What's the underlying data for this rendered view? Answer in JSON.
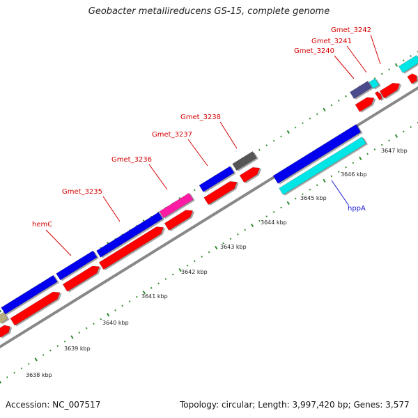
{
  "title": "Geobacter metallireducens GS-15, complete genome",
  "footer": {
    "accession": "Accession: NC_007517",
    "summary": "Topology: circular; Length: 3,997,420 bp; Genes: 3,577"
  },
  "colors": {
    "background": "#ffffff",
    "backbone": "#888888",
    "rna_track": "#ff0000",
    "tick_dots": "#2e8b2e",
    "label_red": "#d40000",
    "label_blue": "#1515d4",
    "cds_blue": "#0000ee",
    "cds_cyan": "#00e5e5",
    "cds_magenta": "#ff1aa6",
    "cds_gray": "#555555",
    "cds_navy": "#4b4a8c",
    "cds_olive": "#b8b07a"
  },
  "kbp_ticks": [
    "3638 kbp",
    "3639 kbp",
    "3640 kbp",
    "3641 kbp",
    "3642 kbp",
    "3643 kbp",
    "3644 kbp",
    "3645 kbp",
    "3646 kbp",
    "3647 kbp"
  ],
  "gene_labels": [
    {
      "name": "hemC",
      "color": "label_red"
    },
    {
      "name": "Gmet_3235",
      "color": "label_red"
    },
    {
      "name": "Gmet_3236",
      "color": "label_red"
    },
    {
      "name": "Gmet_3237",
      "color": "label_red"
    },
    {
      "name": "Gmet_3238",
      "color": "label_red"
    },
    {
      "name": "Gmet_3240",
      "color": "label_red"
    },
    {
      "name": "Gmet_3241",
      "color": "label_red"
    },
    {
      "name": "Gmet_3242",
      "color": "label_red"
    },
    {
      "name": "hppA",
      "color": "label_blue"
    }
  ]
}
